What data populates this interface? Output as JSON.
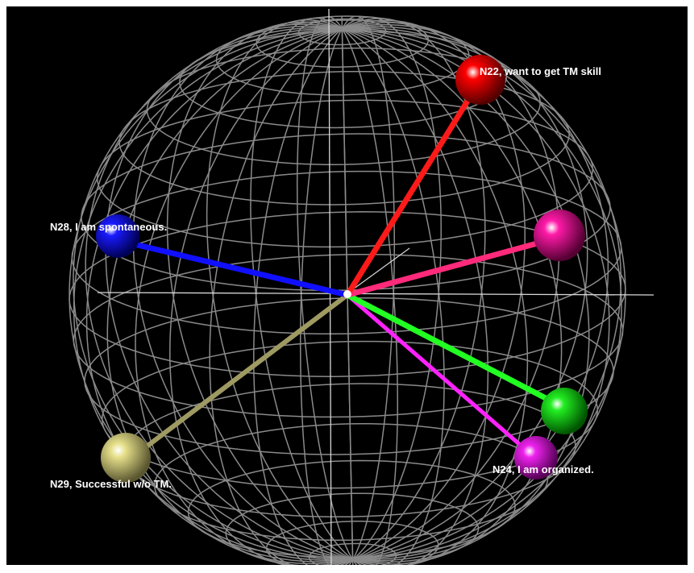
{
  "background_color": "#000000",
  "sphere": {
    "wire_color": "#8a8a8a",
    "axis_color": "#d8d8d8"
  },
  "nodes": [
    {
      "id": "n22",
      "label": "N22, want to get TM skill",
      "color": "#ff0000",
      "rod_color": "#ff1a1a"
    },
    {
      "id": "n-pink",
      "label": "",
      "color": "#ff1aa8",
      "rod_color": "#ff2a7a"
    },
    {
      "id": "n28",
      "label": "N28, I am spontaneous.",
      "color": "#1a1aff",
      "rod_color": "#1010ff"
    },
    {
      "id": "n-green",
      "label": "",
      "color": "#22ee22",
      "rod_color": "#22ff22"
    },
    {
      "id": "n24",
      "label": "N24, I am organized.",
      "color": "#ee22ee",
      "rod_color": "#ff22ff"
    },
    {
      "id": "n29",
      "label": "N29, Successful w/o TM.",
      "color": "#e6e08a",
      "rod_color": "#9e9a62"
    }
  ]
}
